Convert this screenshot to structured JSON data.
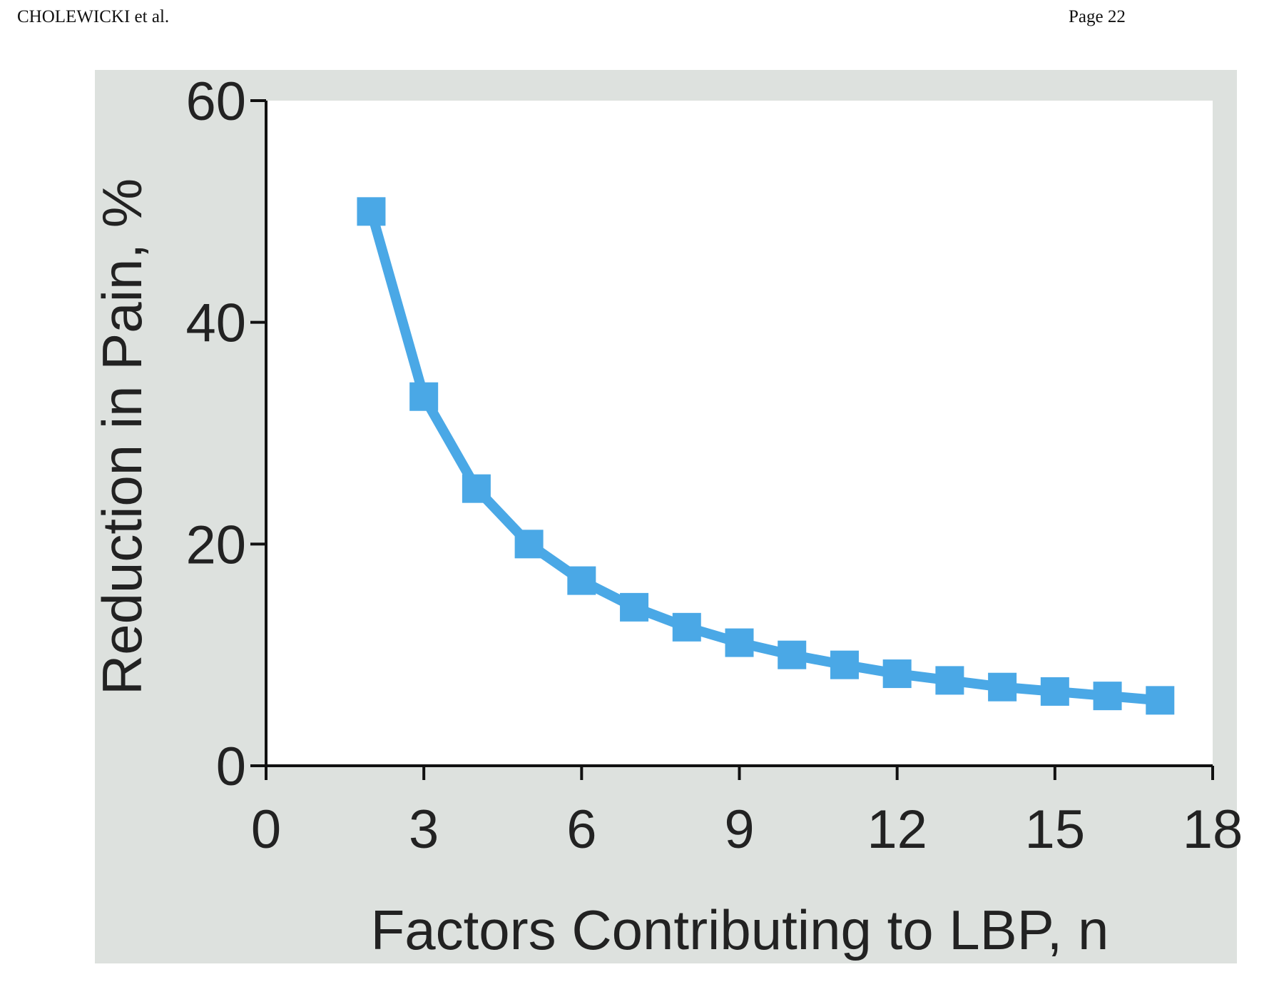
{
  "header": {
    "author": "CHOLEWICKI et al.",
    "page": "Page 22"
  },
  "colors": {
    "series": "#4aa8e6",
    "panel_bg": "#dde1de",
    "axis": "#111111"
  },
  "chart_data": {
    "type": "line",
    "title": "",
    "xlabel": "Factors Contributing to LBP, n",
    "ylabel": "Reduction in Pain, %",
    "xlim": [
      0,
      18
    ],
    "ylim": [
      0,
      60
    ],
    "xticks": [
      0,
      3,
      6,
      9,
      12,
      15,
      18
    ],
    "yticks": [
      0,
      20,
      40,
      60
    ],
    "grid": false,
    "marker": "square",
    "series": [
      {
        "x": [
          2,
          3,
          4,
          5,
          6,
          7,
          8,
          9,
          10,
          11,
          12,
          13,
          14,
          15,
          16,
          17
        ],
        "y": [
          50,
          33.3,
          25,
          20,
          16.7,
          14.3,
          12.5,
          11.1,
          10,
          9.1,
          8.3,
          7.7,
          7.1,
          6.7,
          6.3,
          5.9
        ]
      }
    ]
  }
}
